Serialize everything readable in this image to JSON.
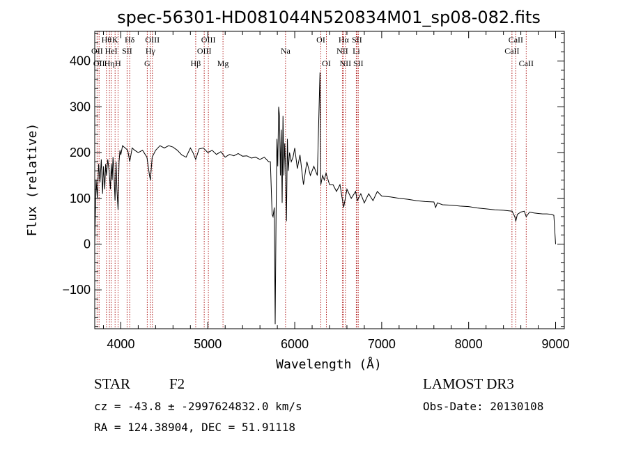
{
  "chart_data": {
    "type": "line",
    "title": "spec-56301-HD081044N520834M01_sp08-082.fits",
    "xlabel": "Wavelength (Å)",
    "ylabel": "Flux (relative)",
    "xlim": [
      3700,
      9100
    ],
    "ylim": [
      -185,
      465
    ],
    "xticks": [
      4000,
      5000,
      6000,
      7000,
      8000,
      9000
    ],
    "yticks": [
      -100,
      0,
      100,
      200,
      300,
      400
    ],
    "grid": false,
    "line_color": "#000000",
    "marker_color": "#b22222",
    "series": [
      {
        "x": [
          3700,
          3715,
          3730,
          3745,
          3760,
          3775,
          3790,
          3800,
          3815,
          3825,
          3835,
          3850,
          3865,
          3880,
          3890,
          3900,
          3910,
          3920,
          3933,
          3945,
          3955,
          3968,
          3980,
          3990,
          4000,
          4020,
          4050,
          4080,
          4102,
          4130,
          4160,
          4200,
          4250,
          4300,
          4330,
          4340,
          4360,
          4400,
          4450,
          4500,
          4550,
          4600,
          4650,
          4700,
          4750,
          4800,
          4830,
          4861,
          4900,
          4950,
          5000,
          5050,
          5100,
          5150,
          5200,
          5250,
          5300,
          5350,
          5400,
          5450,
          5500,
          5550,
          5600,
          5650,
          5700,
          5720,
          5740,
          5750,
          5765,
          5775,
          5785,
          5795,
          5805,
          5815,
          5825,
          5835,
          5845,
          5855,
          5865,
          5875,
          5885,
          5895,
          5905,
          5915,
          5925,
          5940,
          5960,
          5980,
          6000,
          6030,
          6060,
          6100,
          6140,
          6180,
          6220,
          6260,
          6290,
          6300,
          6320,
          6340,
          6360,
          6400,
          6440,
          6480,
          6520,
          6563,
          6600,
          6650,
          6700,
          6720,
          6760,
          6800,
          6850,
          6900,
          6950,
          7000,
          7100,
          7200,
          7300,
          7400,
          7500,
          7600,
          7620,
          7640,
          7700,
          7800,
          7900,
          8000,
          8100,
          8200,
          8300,
          8400,
          8500,
          8530,
          8542,
          8560,
          8600,
          8640,
          8662,
          8700,
          8750,
          8800,
          8850,
          8900,
          8950,
          8980,
          9000
        ],
        "y": [
          0,
          140,
          100,
          175,
          135,
          185,
          110,
          170,
          120,
          175,
          150,
          185,
          160,
          120,
          175,
          140,
          190,
          160,
          95,
          180,
          120,
          75,
          180,
          205,
          195,
          215,
          210,
          205,
          180,
          210,
          205,
          200,
          205,
          190,
          150,
          140,
          190,
          205,
          215,
          210,
          215,
          212,
          205,
          195,
          190,
          210,
          200,
          185,
          208,
          210,
          200,
          205,
          196,
          202,
          190,
          196,
          193,
          198,
          192,
          193,
          188,
          190,
          185,
          190,
          180,
          180,
          65,
          60,
          80,
          -175,
          50,
          230,
          170,
          300,
          280,
          150,
          250,
          90,
          280,
          150,
          220,
          160,
          50,
          230,
          160,
          200,
          180,
          190,
          210,
          165,
          195,
          130,
          180,
          150,
          170,
          150,
          375,
          130,
          150,
          140,
          155,
          130,
          130,
          115,
          130,
          80,
          120,
          100,
          115,
          95,
          110,
          90,
          110,
          95,
          115,
          105,
          103,
          100,
          98,
          95,
          93,
          92,
          80,
          90,
          86,
          85,
          83,
          82,
          79,
          77,
          75,
          74,
          72,
          60,
          50,
          65,
          70,
          72,
          60,
          70,
          68,
          67,
          66,
          66,
          65,
          63,
          0
        ]
      }
    ],
    "spectral_lines": [
      {
        "x": 3727,
        "label": "OII",
        "row": 2
      },
      {
        "x": 3750,
        "label": "OII",
        "row": 3
      },
      {
        "x": 3835,
        "label": "Hθ",
        "row": 1
      },
      {
        "x": 3869,
        "label": "Hη",
        "row": 3
      },
      {
        "x": 3889,
        "label": "HeI",
        "row": 2
      },
      {
        "x": 3934,
        "label": "K",
        "row": 1
      },
      {
        "x": 3968,
        "label": "H",
        "row": 3
      },
      {
        "x": 4072,
        "label": "SII",
        "row": 2
      },
      {
        "x": 4102,
        "label": "Hδ",
        "row": 1
      },
      {
        "x": 4304,
        "label": "G",
        "row": 3
      },
      {
        "x": 4340,
        "label": "Hγ",
        "row": 2
      },
      {
        "x": 4363,
        "label": "OIII",
        "row": 1
      },
      {
        "x": 4861,
        "label": "Hβ",
        "row": 3
      },
      {
        "x": 4959,
        "label": "OIII",
        "row": 2
      },
      {
        "x": 5007,
        "label": "OIII",
        "row": 1
      },
      {
        "x": 5175,
        "label": "Mg",
        "row": 3
      },
      {
        "x": 5894,
        "label": "Na",
        "row": 2
      },
      {
        "x": 6300,
        "label": "OI",
        "row": 1
      },
      {
        "x": 6364,
        "label": "OI",
        "row": 3
      },
      {
        "x": 6548,
        "label": "NII",
        "row": 2
      },
      {
        "x": 6563,
        "label": "Hα",
        "row": 1
      },
      {
        "x": 6583,
        "label": "NII",
        "row": 3
      },
      {
        "x": 6708,
        "label": "Li",
        "row": 2
      },
      {
        "x": 6716,
        "label": "SII",
        "row": 1
      },
      {
        "x": 6731,
        "label": "SII",
        "row": 3
      },
      {
        "x": 8498,
        "label": "CaII",
        "row": 2
      },
      {
        "x": 8542,
        "label": "CaII",
        "row": 1
      },
      {
        "x": 8662,
        "label": "CaII",
        "row": 3
      }
    ]
  },
  "info": {
    "class_label": "STAR",
    "subclass": "F2",
    "cz": "cz = -43.8 ± -2997624832.0 km/s",
    "coords": "RA = 124.38904, DEC =  51.91118",
    "survey": "LAMOST DR3",
    "obs_date": "Obs-Date: 20130108"
  }
}
